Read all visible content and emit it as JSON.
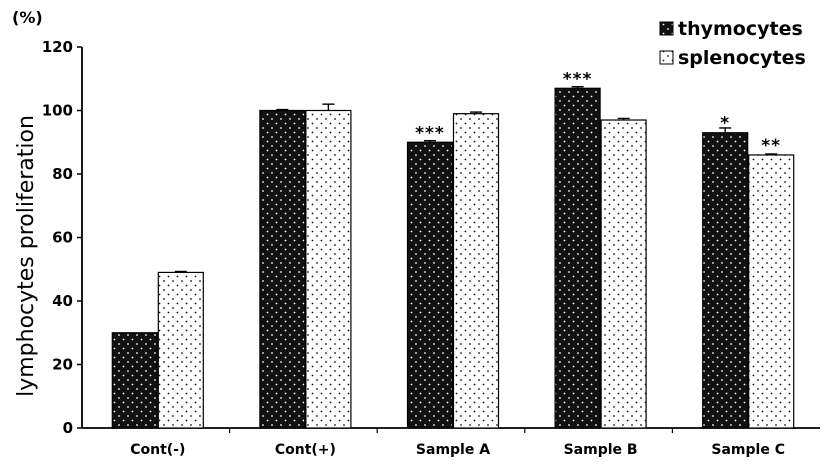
{
  "chart_data": {
    "type": "bar",
    "unit_label": "(%)",
    "ylabel": "lymphocytes proliferation",
    "xlabel": "",
    "ylim": [
      0,
      120
    ],
    "yticks": [
      0,
      20,
      40,
      60,
      80,
      100,
      120
    ],
    "categories": [
      "Cont(-)",
      "Cont(+)",
      "Sample A",
      "Sample B",
      "Sample C"
    ],
    "series": [
      {
        "name": "thymocytes",
        "color": "#111111",
        "pattern": "dark-dotted",
        "values": [
          30,
          100,
          90,
          107,
          93
        ],
        "errors": [
          0,
          0.3,
          0.5,
          0.5,
          1.5
        ],
        "significance": [
          "",
          "",
          "***",
          "***",
          "*"
        ]
      },
      {
        "name": "splenocytes",
        "color": "#ffffff",
        "pattern": "light-dotted",
        "values": [
          49,
          100,
          99,
          97,
          86
        ],
        "errors": [
          0.3,
          2,
          0.5,
          0.5,
          0.3
        ],
        "significance": [
          "",
          "",
          "",
          "",
          "**"
        ]
      }
    ],
    "legend_position": "top-right",
    "grid": false
  }
}
